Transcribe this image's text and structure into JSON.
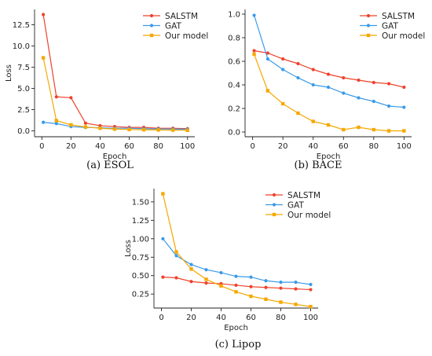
{
  "chart_data": [
    {
      "type": "line",
      "caption": "(a) ESOL",
      "xlabel": "Epoch",
      "ylabel": "Loss",
      "xlim": [
        -5,
        105
      ],
      "ylim": [
        -0.7,
        14.3
      ],
      "xticks": [
        0,
        20,
        40,
        60,
        80,
        100
      ],
      "yticks": [
        0.0,
        2.5,
        5.0,
        7.5,
        10.0,
        12.5
      ],
      "ytick_labels": [
        "0.0",
        "2.5",
        "5.0",
        "7.5",
        "10.0",
        "12.5"
      ],
      "legend_position": "top-right",
      "series": [
        {
          "name": "SALSTM",
          "color": "#f0412b",
          "marker": "dot",
          "x": [
            1,
            10,
            20,
            30,
            40,
            50,
            60,
            70,
            80,
            90,
            100
          ],
          "y": [
            13.7,
            4.0,
            3.9,
            0.9,
            0.6,
            0.5,
            0.4,
            0.4,
            0.3,
            0.3,
            0.25
          ]
        },
        {
          "name": "GAT",
          "color": "#3b9ae8",
          "marker": "dot",
          "x": [
            1,
            10,
            20,
            30,
            40,
            50,
            60,
            70,
            80,
            90,
            100
          ],
          "y": [
            1.0,
            0.85,
            0.5,
            0.4,
            0.35,
            0.3,
            0.3,
            0.25,
            0.22,
            0.2,
            0.18
          ]
        },
        {
          "name": "Our model",
          "color": "#f5a800",
          "marker": "square",
          "x": [
            1,
            10,
            20,
            30,
            40,
            50,
            60,
            70,
            80,
            90,
            100
          ],
          "y": [
            8.6,
            1.2,
            0.7,
            0.45,
            0.3,
            0.2,
            0.15,
            0.12,
            0.1,
            0.08,
            0.06
          ]
        }
      ]
    },
    {
      "type": "line",
      "caption": "(b) BACE",
      "xlabel": "Epoch",
      "ylabel": "",
      "xlim": [
        -5,
        105
      ],
      "ylim": [
        -0.04,
        1.04
      ],
      "xticks": [
        0,
        20,
        40,
        60,
        80,
        100
      ],
      "yticks": [
        0.0,
        0.2,
        0.4,
        0.6,
        0.8,
        1.0
      ],
      "ytick_labels": [
        "0.0",
        "0.2",
        "0.4",
        "0.6",
        "0.8",
        "1.0"
      ],
      "legend_position": "top-right",
      "series": [
        {
          "name": "SALSTM",
          "color": "#f0412b",
          "marker": "dot",
          "x": [
            1,
            10,
            20,
            30,
            40,
            50,
            60,
            70,
            80,
            90,
            100
          ],
          "y": [
            0.69,
            0.67,
            0.62,
            0.58,
            0.53,
            0.49,
            0.46,
            0.44,
            0.42,
            0.41,
            0.38
          ]
        },
        {
          "name": "GAT",
          "color": "#3b9ae8",
          "marker": "dot",
          "x": [
            1,
            10,
            20,
            30,
            40,
            50,
            60,
            70,
            80,
            90,
            100
          ],
          "y": [
            0.99,
            0.62,
            0.53,
            0.46,
            0.4,
            0.38,
            0.33,
            0.29,
            0.26,
            0.22,
            0.21
          ]
        },
        {
          "name": "Our model",
          "color": "#f5a800",
          "marker": "square",
          "x": [
            1,
            10,
            20,
            30,
            40,
            50,
            60,
            70,
            80,
            90,
            100
          ],
          "y": [
            0.66,
            0.35,
            0.24,
            0.16,
            0.09,
            0.06,
            0.02,
            0.04,
            0.02,
            0.01,
            0.01
          ]
        }
      ]
    },
    {
      "type": "line",
      "caption": "(c) Lipop",
      "xlabel": "Epoch",
      "ylabel": "Loss",
      "xlim": [
        -5,
        105
      ],
      "ylim": [
        0.06,
        1.68
      ],
      "xticks": [
        0,
        20,
        40,
        60,
        80,
        100
      ],
      "yticks": [
        0.25,
        0.5,
        0.75,
        1.0,
        1.25,
        1.5
      ],
      "ytick_labels": [
        "0.25",
        "0.50",
        "0.75",
        "1.00",
        "1.25",
        "1.50"
      ],
      "legend_position": "top-right",
      "series": [
        {
          "name": "SALSTM",
          "color": "#f0412b",
          "marker": "dot",
          "x": [
            1,
            10,
            20,
            30,
            40,
            50,
            60,
            70,
            80,
            90,
            100
          ],
          "y": [
            0.48,
            0.47,
            0.42,
            0.4,
            0.39,
            0.37,
            0.35,
            0.34,
            0.33,
            0.32,
            0.31
          ]
        },
        {
          "name": "GAT",
          "color": "#3b9ae8",
          "marker": "dot",
          "x": [
            1,
            10,
            20,
            30,
            40,
            50,
            60,
            70,
            80,
            90,
            100
          ],
          "y": [
            1.0,
            0.77,
            0.65,
            0.58,
            0.54,
            0.49,
            0.48,
            0.43,
            0.41,
            0.41,
            0.38
          ]
        },
        {
          "name": "Our model",
          "color": "#f5a800",
          "marker": "square",
          "x": [
            1,
            10,
            20,
            30,
            40,
            50,
            60,
            70,
            80,
            90,
            100
          ],
          "y": [
            1.61,
            0.82,
            0.59,
            0.45,
            0.36,
            0.28,
            0.22,
            0.18,
            0.14,
            0.11,
            0.08
          ]
        }
      ]
    }
  ]
}
